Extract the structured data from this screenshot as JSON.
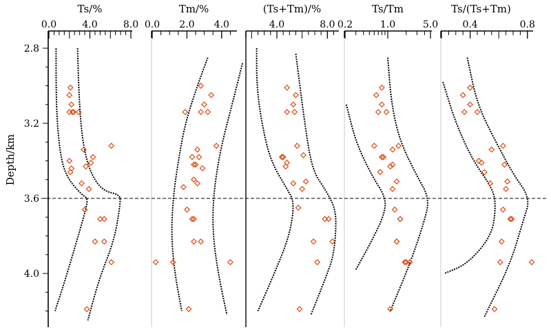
{
  "chart_data": {
    "type": "scatter",
    "y_label": "Depth/km",
    "y_range": [
      2.75,
      4.3
    ],
    "y_ticks": [
      "2.8",
      "3.2",
      "3.6",
      "4.0"
    ],
    "reference_line_depth": 3.6,
    "marker_color": "#e0531f",
    "envelope_color": "#000000",
    "panels": [
      {
        "title": "Ts/%",
        "x_range": [
          0,
          8
        ],
        "scale": "linear",
        "ticks": [
          {
            "v": 0,
            "label": "0.0"
          },
          {
            "v": 4,
            "label": "4.0"
          },
          {
            "v": 8,
            "label": "8.0"
          }
        ],
        "points": [
          [
            2.1,
            3.01
          ],
          [
            2.0,
            3.05
          ],
          [
            2.2,
            3.1
          ],
          [
            2.4,
            3.14
          ],
          [
            2.3,
            3.14
          ],
          [
            2.0,
            3.14
          ],
          [
            2.9,
            3.14
          ],
          [
            3.4,
            3.34
          ],
          [
            6.1,
            3.32
          ],
          [
            4.3,
            3.38
          ],
          [
            4.1,
            3.41
          ],
          [
            3.6,
            3.43
          ],
          [
            2.0,
            3.4
          ],
          [
            2.2,
            3.44
          ],
          [
            2.1,
            3.46
          ],
          [
            3.2,
            3.52
          ],
          [
            3.9,
            3.55
          ],
          [
            3.5,
            3.66
          ],
          [
            5.0,
            3.71
          ],
          [
            5.4,
            3.71
          ],
          [
            4.5,
            3.83
          ],
          [
            5.4,
            3.83
          ],
          [
            6.1,
            3.94
          ],
          [
            3.7,
            4.19
          ]
        ],
        "left_bound": [
          [
            0.7,
            2.8
          ],
          [
            0.7,
            3.0
          ],
          [
            0.8,
            3.2
          ],
          [
            1.2,
            3.4
          ],
          [
            1.9,
            3.5
          ],
          [
            3.2,
            3.58
          ],
          [
            3.8,
            3.6
          ],
          [
            3.6,
            3.66
          ],
          [
            2.6,
            3.85
          ],
          [
            1.5,
            4.05
          ],
          [
            0.6,
            4.2
          ]
        ],
        "right_bound": [
          [
            2.8,
            2.8
          ],
          [
            2.9,
            3.0
          ],
          [
            3.1,
            3.2
          ],
          [
            3.5,
            3.36
          ],
          [
            4.2,
            3.48
          ],
          [
            5.3,
            3.56
          ],
          [
            6.9,
            3.58
          ],
          [
            7.0,
            3.62
          ],
          [
            6.4,
            3.82
          ],
          [
            4.9,
            4.03
          ],
          [
            3.8,
            4.25
          ]
        ]
      },
      {
        "title": "Tm/%",
        "x_range": [
          0,
          4.8
        ],
        "scale": "linear",
        "ticks": [
          {
            "v": 0,
            "label": "0.0"
          },
          {
            "v": 2,
            "label": "2.0"
          },
          {
            "v": 4,
            "label": "4.0"
          }
        ],
        "points": [
          [
            2.8,
            3.0
          ],
          [
            3.4,
            3.05
          ],
          [
            3.0,
            3.1
          ],
          [
            2.8,
            3.14
          ],
          [
            3.2,
            3.14
          ],
          [
            1.9,
            3.14
          ],
          [
            3.7,
            3.32
          ],
          [
            2.6,
            3.34
          ],
          [
            2.3,
            3.38
          ],
          [
            2.7,
            3.38
          ],
          [
            2.5,
            3.42
          ],
          [
            2.4,
            3.42
          ],
          [
            2.9,
            3.44
          ],
          [
            2.4,
            3.5
          ],
          [
            2.6,
            3.52
          ],
          [
            1.8,
            3.54
          ],
          [
            2.0,
            3.66
          ],
          [
            2.3,
            3.71
          ],
          [
            2.4,
            3.71
          ],
          [
            2.8,
            3.83
          ],
          [
            2.4,
            3.83
          ],
          [
            0.2,
            3.94
          ],
          [
            1.2,
            3.94
          ],
          [
            4.5,
            3.94
          ],
          [
            2.1,
            4.19
          ]
        ],
        "left_bound": [
          [
            3.2,
            2.85
          ],
          [
            2.6,
            3.0
          ],
          [
            1.9,
            3.2
          ],
          [
            1.5,
            3.4
          ],
          [
            1.2,
            3.6
          ],
          [
            1.1,
            3.8
          ],
          [
            1.3,
            4.0
          ],
          [
            1.7,
            4.2
          ]
        ],
        "right_bound": [
          [
            5.2,
            2.88
          ],
          [
            4.6,
            3.1
          ],
          [
            3.9,
            3.35
          ],
          [
            3.5,
            3.6
          ],
          [
            3.5,
            3.8
          ],
          [
            3.8,
            4.0
          ],
          [
            4.3,
            4.22
          ]
        ]
      },
      {
        "title": "(Ts+Tm)/%",
        "x_range": [
          1.6,
          8.8
        ],
        "scale": "linear",
        "ticks": [
          {
            "v": 4,
            "label": "4.0"
          },
          {
            "v": 8,
            "label": "8.0"
          }
        ],
        "points": [
          [
            4.8,
            3.01
          ],
          [
            5.5,
            3.05
          ],
          [
            5.3,
            3.1
          ],
          [
            5.4,
            3.14
          ],
          [
            4.8,
            3.14
          ],
          [
            5.6,
            3.32
          ],
          [
            4.5,
            3.38
          ],
          [
            4.8,
            3.41
          ],
          [
            4.7,
            3.43
          ],
          [
            4.4,
            3.38
          ],
          [
            6.1,
            3.37
          ],
          [
            6.3,
            3.51
          ],
          [
            5.3,
            3.52
          ],
          [
            6.0,
            3.55
          ],
          [
            5.7,
            3.65
          ],
          [
            7.8,
            3.71
          ],
          [
            8.1,
            3.71
          ],
          [
            6.9,
            3.83
          ],
          [
            8.4,
            3.83
          ],
          [
            7.2,
            3.94
          ],
          [
            5.8,
            4.19
          ]
        ],
        "left_bound": [
          [
            2.4,
            2.8
          ],
          [
            2.4,
            3.0
          ],
          [
            2.8,
            3.2
          ],
          [
            3.5,
            3.4
          ],
          [
            4.8,
            3.55
          ],
          [
            5.4,
            3.62
          ],
          [
            5.0,
            3.8
          ],
          [
            3.8,
            4.0
          ],
          [
            2.5,
            4.2
          ]
        ],
        "right_bound": [
          [
            5.5,
            2.83
          ],
          [
            6.2,
            3.2
          ],
          [
            6.8,
            3.45
          ],
          [
            7.9,
            3.56
          ],
          [
            8.6,
            3.65
          ],
          [
            8.7,
            3.75
          ],
          [
            8.5,
            3.9
          ],
          [
            8.0,
            4.0
          ],
          [
            6.7,
            4.22
          ]
        ]
      },
      {
        "title": "Ts/Tm",
        "x_range": [
          0.2,
          5.0
        ],
        "scale": "log",
        "ticks": [
          {
            "v": 0.2,
            "label": "0.2"
          },
          {
            "v": 1.0,
            "label": "1.0"
          },
          {
            "v": 5.0,
            "label": "5.0"
          }
        ],
        "minor_ticks": [
          0.3,
          0.4,
          0.5,
          0.6,
          0.7,
          0.8,
          0.9,
          2,
          3,
          4
        ],
        "points": [
          [
            0.8,
            3.01
          ],
          [
            0.65,
            3.05
          ],
          [
            0.8,
            3.1
          ],
          [
            0.95,
            3.14
          ],
          [
            0.7,
            3.14
          ],
          [
            1.5,
            3.32
          ],
          [
            1.2,
            3.34
          ],
          [
            0.6,
            3.32
          ],
          [
            0.85,
            3.38
          ],
          [
            0.8,
            3.38
          ],
          [
            1.2,
            3.42
          ],
          [
            1.1,
            3.43
          ],
          [
            0.75,
            3.46
          ],
          [
            1.4,
            3.51
          ],
          [
            1.2,
            3.55
          ],
          [
            1.3,
            3.66
          ],
          [
            1.6,
            3.71
          ],
          [
            1.6,
            3.71
          ],
          [
            1.4,
            3.83
          ],
          [
            1.4,
            3.83
          ],
          [
            1.9,
            3.94
          ],
          [
            2.3,
            3.94
          ],
          [
            2.0,
            3.94
          ],
          [
            1.1,
            4.19
          ]
        ],
        "left_bound": [
          [
            0.21,
            3.1
          ],
          [
            0.3,
            3.3
          ],
          [
            0.55,
            3.48
          ],
          [
            0.95,
            3.6
          ],
          [
            0.85,
            3.7
          ],
          [
            0.5,
            3.85
          ],
          [
            0.3,
            3.98
          ]
        ],
        "right_bound": [
          [
            1.0,
            2.85
          ],
          [
            1.15,
            3.1
          ],
          [
            1.6,
            3.3
          ],
          [
            3.0,
            3.48
          ],
          [
            4.8,
            3.6
          ],
          [
            4.0,
            3.72
          ],
          [
            2.3,
            3.95
          ],
          [
            1.1,
            4.2
          ]
        ]
      },
      {
        "title": "Ts/(Ts+Tm)",
        "x_range": [
          0.2,
          0.83
        ],
        "scale": "linear",
        "ticks": [
          {
            "v": 0.4,
            "label": "0.4"
          },
          {
            "v": 0.8,
            "label": "0.8"
          }
        ],
        "points": [
          [
            0.4,
            3.01
          ],
          [
            0.35,
            3.05
          ],
          [
            0.4,
            3.1
          ],
          [
            0.45,
            3.14
          ],
          [
            0.36,
            3.14
          ],
          [
            0.63,
            3.32
          ],
          [
            0.55,
            3.34
          ],
          [
            0.46,
            3.4
          ],
          [
            0.64,
            3.42
          ],
          [
            0.48,
            3.41
          ],
          [
            0.5,
            3.46
          ],
          [
            0.66,
            3.51
          ],
          [
            0.54,
            3.52
          ],
          [
            0.65,
            3.55
          ],
          [
            0.63,
            3.66
          ],
          [
            0.69,
            3.71
          ],
          [
            0.68,
            3.71
          ],
          [
            0.62,
            3.83
          ],
          [
            0.61,
            3.94
          ],
          [
            0.83,
            3.94
          ],
          [
            0.57,
            4.19
          ]
        ],
        "left_bound": [
          [
            0.21,
            2.98
          ],
          [
            0.3,
            3.2
          ],
          [
            0.42,
            3.4
          ],
          [
            0.56,
            3.55
          ],
          [
            0.58,
            3.65
          ],
          [
            0.55,
            3.8
          ],
          [
            0.38,
            3.95
          ],
          [
            0.22,
            4.0
          ]
        ],
        "right_bound": [
          [
            0.38,
            2.85
          ],
          [
            0.45,
            3.1
          ],
          [
            0.58,
            3.3
          ],
          [
            0.7,
            3.47
          ],
          [
            0.82,
            3.6
          ],
          [
            0.77,
            3.72
          ],
          [
            0.68,
            3.95
          ],
          [
            0.5,
            4.23
          ]
        ]
      }
    ]
  }
}
